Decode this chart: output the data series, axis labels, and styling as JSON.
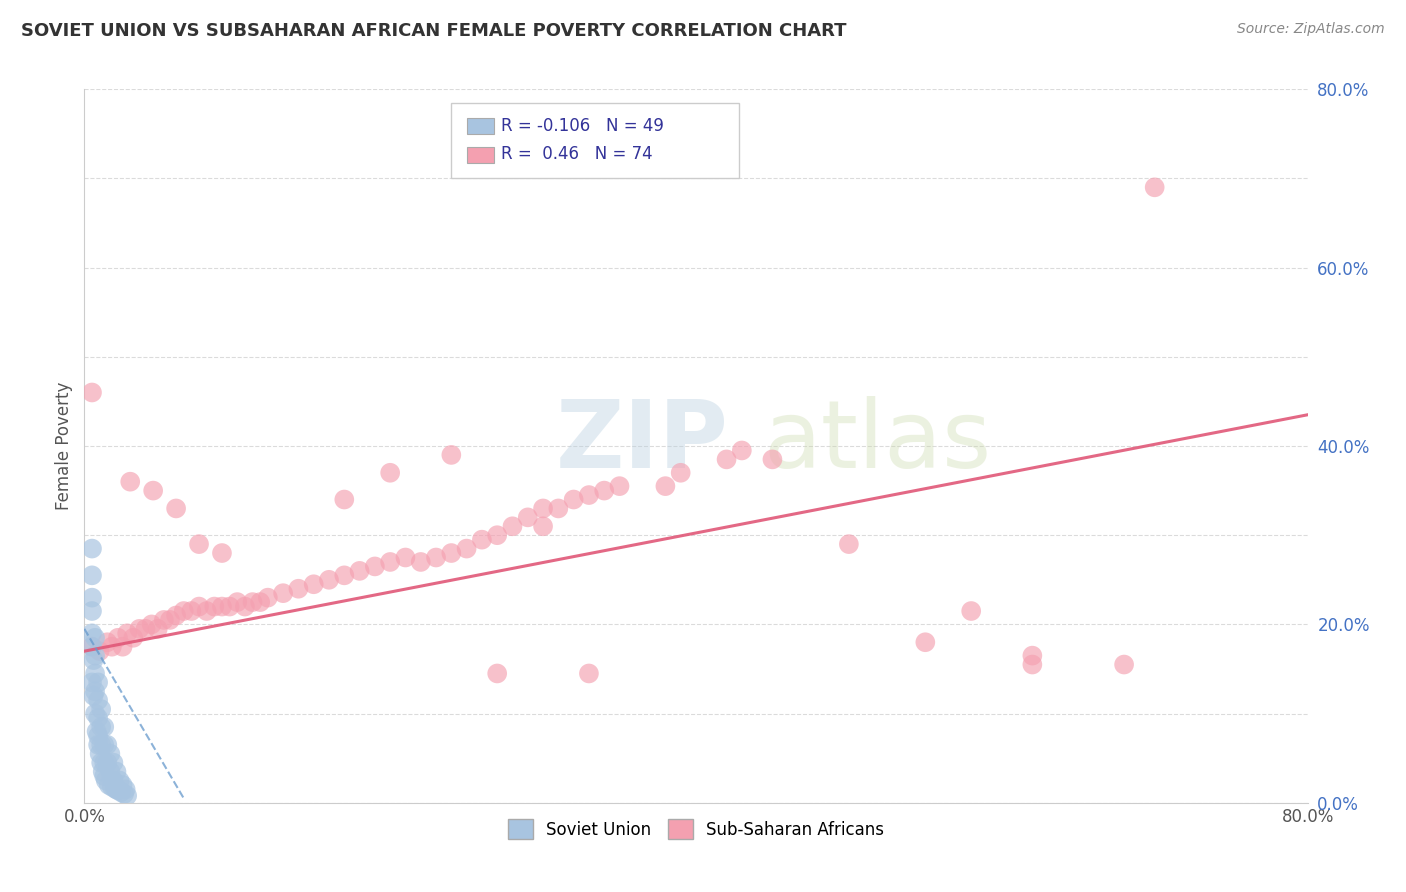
{
  "title": "SOVIET UNION VS SUBSAHARAN AFRICAN FEMALE POVERTY CORRELATION CHART",
  "source": "Source: ZipAtlas.com",
  "ylabel": "Female Poverty",
  "xlim": [
    0.0,
    0.8
  ],
  "ylim": [
    0.0,
    0.8
  ],
  "ytick_labels_right": [
    "0.0%",
    "20.0%",
    "40.0%",
    "60.0%",
    "80.0%"
  ],
  "ytick_vals_right": [
    0.0,
    0.2,
    0.4,
    0.6,
    0.8
  ],
  "grid_color": "#cccccc",
  "background_color": "#ffffff",
  "soviet_color": "#a8c4e0",
  "soviet_line_color": "#6699cc",
  "africa_color": "#f4a0b0",
  "africa_line_color": "#e05878",
  "soviet_R": -0.106,
  "soviet_N": 49,
  "africa_R": 0.46,
  "africa_N": 74,
  "legend_label_soviet": "Soviet Union",
  "legend_label_africa": "Sub-Saharan Africans",
  "watermark_zip": "ZIP",
  "watermark_atlas": "atlas",
  "soviet_scatter_x": [
    0.005,
    0.005,
    0.005,
    0.005,
    0.005,
    0.007,
    0.007,
    0.007,
    0.007,
    0.009,
    0.009,
    0.009,
    0.009,
    0.011,
    0.011,
    0.011,
    0.013,
    0.013,
    0.013,
    0.015,
    0.015,
    0.017,
    0.017,
    0.019,
    0.019,
    0.021,
    0.021,
    0.023,
    0.025,
    0.027,
    0.005,
    0.005,
    0.006,
    0.006,
    0.007,
    0.008,
    0.009,
    0.01,
    0.011,
    0.012,
    0.013,
    0.014,
    0.016,
    0.018,
    0.02,
    0.022,
    0.024,
    0.026,
    0.028
  ],
  "soviet_scatter_y": [
    0.285,
    0.255,
    0.215,
    0.175,
    0.135,
    0.185,
    0.165,
    0.145,
    0.125,
    0.135,
    0.115,
    0.095,
    0.075,
    0.105,
    0.085,
    0.065,
    0.085,
    0.065,
    0.045,
    0.065,
    0.045,
    0.055,
    0.035,
    0.045,
    0.025,
    0.035,
    0.015,
    0.025,
    0.02,
    0.015,
    0.23,
    0.19,
    0.16,
    0.12,
    0.1,
    0.08,
    0.065,
    0.055,
    0.045,
    0.035,
    0.03,
    0.025,
    0.02,
    0.018,
    0.016,
    0.014,
    0.012,
    0.01,
    0.008
  ],
  "africa_scatter_x": [
    0.005,
    0.01,
    0.015,
    0.018,
    0.022,
    0.025,
    0.028,
    0.032,
    0.036,
    0.04,
    0.044,
    0.048,
    0.052,
    0.056,
    0.06,
    0.065,
    0.07,
    0.075,
    0.08,
    0.085,
    0.09,
    0.095,
    0.1,
    0.105,
    0.11,
    0.115,
    0.12,
    0.13,
    0.14,
    0.15,
    0.16,
    0.17,
    0.18,
    0.19,
    0.2,
    0.21,
    0.22,
    0.23,
    0.24,
    0.25,
    0.26,
    0.27,
    0.28,
    0.29,
    0.3,
    0.31,
    0.32,
    0.33,
    0.34,
    0.35,
    0.39,
    0.42,
    0.45,
    0.58,
    0.62,
    0.68,
    0.005,
    0.03,
    0.045,
    0.06,
    0.075,
    0.09,
    0.17,
    0.2,
    0.24,
    0.3,
    0.38,
    0.43,
    0.5,
    0.55,
    0.62,
    0.7,
    0.27,
    0.33
  ],
  "africa_scatter_y": [
    0.175,
    0.17,
    0.18,
    0.175,
    0.185,
    0.175,
    0.19,
    0.185,
    0.195,
    0.195,
    0.2,
    0.195,
    0.205,
    0.205,
    0.21,
    0.215,
    0.215,
    0.22,
    0.215,
    0.22,
    0.22,
    0.22,
    0.225,
    0.22,
    0.225,
    0.225,
    0.23,
    0.235,
    0.24,
    0.245,
    0.25,
    0.255,
    0.26,
    0.265,
    0.27,
    0.275,
    0.27,
    0.275,
    0.28,
    0.285,
    0.295,
    0.3,
    0.31,
    0.32,
    0.33,
    0.33,
    0.34,
    0.345,
    0.35,
    0.355,
    0.37,
    0.385,
    0.385,
    0.215,
    0.165,
    0.155,
    0.46,
    0.36,
    0.35,
    0.33,
    0.29,
    0.28,
    0.34,
    0.37,
    0.39,
    0.31,
    0.355,
    0.395,
    0.29,
    0.18,
    0.155,
    0.69,
    0.145,
    0.145
  ],
  "africa_trend_x": [
    0.0,
    0.8
  ],
  "africa_trend_y": [
    0.17,
    0.435
  ],
  "soviet_trend_x": [
    0.0,
    0.065
  ],
  "soviet_trend_y": [
    0.195,
    0.005
  ]
}
